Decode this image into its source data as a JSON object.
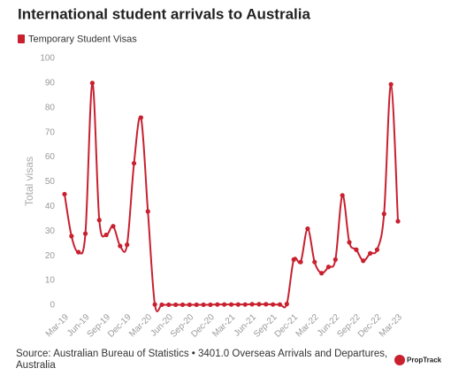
{
  "chart_data": {
    "type": "line",
    "title": "International student arrivals to Australia",
    "y_label": "Total visas",
    "source": "Source: Australian Bureau of Statistics • 3401.0 Overseas Arrivals and Departures, Australia",
    "brand": "PropTrack",
    "categories": [
      "Mar-19",
      null,
      null,
      "Jun-19",
      null,
      null,
      "Sep-19",
      null,
      null,
      "Dec-19",
      null,
      null,
      "Mar-20",
      null,
      null,
      "Jun-20",
      null,
      null,
      "Sep-20",
      null,
      null,
      "Dec-20",
      null,
      null,
      "Mar-21",
      null,
      null,
      "Jun-21",
      null,
      null,
      "Sep-21",
      null,
      null,
      "Dec-21",
      null,
      null,
      "Mar-22",
      null,
      null,
      "Jun-22",
      null,
      null,
      "Sep-22",
      null,
      null,
      "Dec-22",
      null,
      null,
      "Mar-23"
    ],
    "series": [
      {
        "name": "Temporary Student Visas",
        "color": "#c8202f",
        "values": [
          45,
          28,
          21.5,
          29,
          90,
          34.5,
          28.5,
          32,
          24,
          24.5,
          57.5,
          76,
          38,
          0.3,
          0.2,
          0.2,
          0.2,
          0.2,
          0.2,
          0.2,
          0.2,
          0.2,
          0.3,
          0.3,
          0.3,
          0.3,
          0.3,
          0.4,
          0.4,
          0.4,
          0.3,
          0.3,
          0.5,
          18.5,
          17.5,
          31,
          17.5,
          13,
          15.5,
          18.5,
          44.5,
          25.5,
          22.5,
          18,
          21,
          22.5,
          37,
          89.5,
          34
        ]
      }
    ],
    "ylim": [
      0,
      100
    ],
    "yticks": [
      0,
      10,
      20,
      30,
      40,
      50,
      60,
      70,
      80,
      90,
      100
    ],
    "legend": "top-left",
    "grid": false
  }
}
